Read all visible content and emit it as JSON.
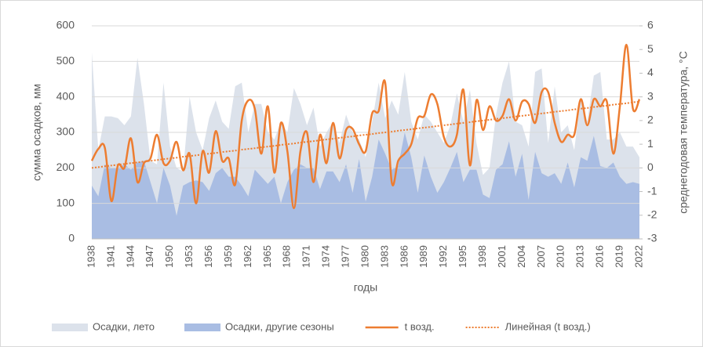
{
  "chart_data": {
    "type": "combo",
    "x_label": "годы",
    "y_label": "сумма осадков, мм",
    "y2_label": "среднегодовая температура, °С",
    "categories": [
      "1938",
      null,
      null,
      "1941",
      null,
      null,
      "1944",
      null,
      null,
      "1947",
      null,
      null,
      "1950",
      null,
      null,
      "1953",
      null,
      null,
      "1956",
      null,
      null,
      "1959",
      null,
      null,
      "1962",
      null,
      null,
      "1965",
      null,
      null,
      "1968",
      null,
      null,
      "1971",
      null,
      null,
      "1974",
      null,
      null,
      "1977",
      null,
      null,
      "1980",
      null,
      null,
      "1983",
      null,
      null,
      "1986",
      null,
      null,
      "1989",
      null,
      null,
      "1992",
      null,
      null,
      "1995",
      null,
      null,
      "1998",
      null,
      null,
      "2001",
      null,
      null,
      "2004",
      null,
      null,
      "2007",
      null,
      null,
      "2010",
      null,
      null,
      "2013",
      null,
      null,
      "2016",
      null,
      null,
      "2019",
      null,
      null,
      "2022"
    ],
    "ylim": [
      0,
      600
    ],
    "yticks": [
      0,
      100,
      200,
      300,
      400,
      500,
      600
    ],
    "y2lim": [
      -3,
      6
    ],
    "y2ticks": [
      -3,
      -2,
      -1,
      0,
      1,
      2,
      3,
      4,
      5,
      6
    ],
    "grid": true,
    "legend": "bottom",
    "series": [
      {
        "name": "Осадки, лето",
        "type": "area",
        "color": "#dce2eb",
        "values": [
          525,
          250,
          345,
          345,
          340,
          320,
          345,
          510,
          380,
          220,
          210,
          440,
          260,
          200,
          190,
          400,
          300,
          250,
          340,
          390,
          330,
          310,
          430,
          440,
          300,
          380,
          380,
          300,
          280,
          330,
          300,
          425,
          380,
          320,
          370,
          260,
          300,
          330,
          270,
          350,
          300,
          280,
          230,
          330,
          440,
          340,
          390,
          350,
          470,
          330,
          280,
          350,
          330,
          300,
          270,
          320,
          410,
          330,
          420,
          270,
          180,
          200,
          350,
          440,
          500,
          330,
          320,
          260,
          470,
          480,
          270,
          430,
          300,
          320,
          250,
          400,
          330,
          460,
          470,
          280,
          280,
          300,
          260,
          260,
          230
        ]
      },
      {
        "name": "Осадки, другие сезоны",
        "type": "area",
        "color": "#a9bde3",
        "values": [
          150,
          120,
          210,
          200,
          200,
          210,
          195,
          215,
          220,
          160,
          100,
          200,
          150,
          65,
          150,
          160,
          165,
          160,
          135,
          185,
          200,
          175,
          175,
          150,
          120,
          195,
          175,
          155,
          175,
          100,
          160,
          195,
          210,
          200,
          200,
          140,
          190,
          190,
          160,
          210,
          130,
          225,
          105,
          175,
          280,
          240,
          195,
          205,
          300,
          230,
          130,
          235,
          175,
          130,
          160,
          200,
          245,
          160,
          195,
          195,
          125,
          115,
          195,
          210,
          275,
          175,
          240,
          110,
          245,
          185,
          175,
          185,
          155,
          215,
          145,
          230,
          220,
          290,
          205,
          200,
          215,
          175,
          155,
          160,
          155
        ]
      },
      {
        "name": "t возд.",
        "type": "line",
        "axis": "y2",
        "color": "#ed7d31",
        "values": [
          0.3,
          0.8,
          0.85,
          -1.4,
          0.1,
          0.0,
          1.25,
          -0.6,
          0.2,
          0.4,
          1.4,
          0.2,
          0.3,
          1.1,
          -0.1,
          0.6,
          -1.5,
          0.7,
          -0.2,
          1.55,
          0.3,
          0.4,
          -0.7,
          2.0,
          2.85,
          2.5,
          0.6,
          2.6,
          -0.2,
          1.9,
          0.7,
          -1.7,
          0.7,
          1.5,
          -0.6,
          1.4,
          0.2,
          1.9,
          0.4,
          1.6,
          1.65,
          1.0,
          0.7,
          2.3,
          2.4,
          3.6,
          -0.6,
          0.3,
          0.6,
          1.0,
          2.1,
          2.2,
          3.1,
          2.7,
          1.3,
          0.9,
          1.4,
          3.3,
          0.1,
          2.85,
          1.6,
          2.6,
          2.0,
          2.2,
          2.9,
          2.0,
          2.8,
          2.7,
          1.9,
          3.2,
          3.2,
          1.9,
          1.1,
          1.4,
          1.4,
          2.9,
          1.8,
          2.9,
          2.6,
          2.8,
          0.6,
          2.6,
          5.2,
          2.5,
          2.9
        ]
      },
      {
        "name": "Линейная (t возд.)",
        "type": "line",
        "style": "dotted",
        "axis": "y2",
        "color": "#ed7d31",
        "values": [
          0,
          0.03,
          0.07,
          0.1,
          0.13,
          0.17,
          0.2,
          0.23,
          0.27,
          0.3,
          0.33,
          0.37,
          0.4,
          0.43,
          0.47,
          0.5,
          0.53,
          0.57,
          0.6,
          0.63,
          0.67,
          0.7,
          0.73,
          0.77,
          0.8,
          0.83,
          0.87,
          0.9,
          0.93,
          0.97,
          1.0,
          1.03,
          1.07,
          1.1,
          1.13,
          1.17,
          1.2,
          1.23,
          1.27,
          1.3,
          1.33,
          1.37,
          1.4,
          1.43,
          1.47,
          1.5,
          1.53,
          1.57,
          1.6,
          1.63,
          1.67,
          1.7,
          1.73,
          1.77,
          1.8,
          1.83,
          1.87,
          1.9,
          1.93,
          1.97,
          2.0,
          2.03,
          2.07,
          2.1,
          2.13,
          2.17,
          2.2,
          2.23,
          2.27,
          2.3,
          2.33,
          2.37,
          2.4,
          2.43,
          2.47,
          2.5,
          2.53,
          2.57,
          2.6,
          2.63,
          2.67,
          2.7,
          2.73,
          2.77,
          2.8
        ]
      }
    ]
  }
}
